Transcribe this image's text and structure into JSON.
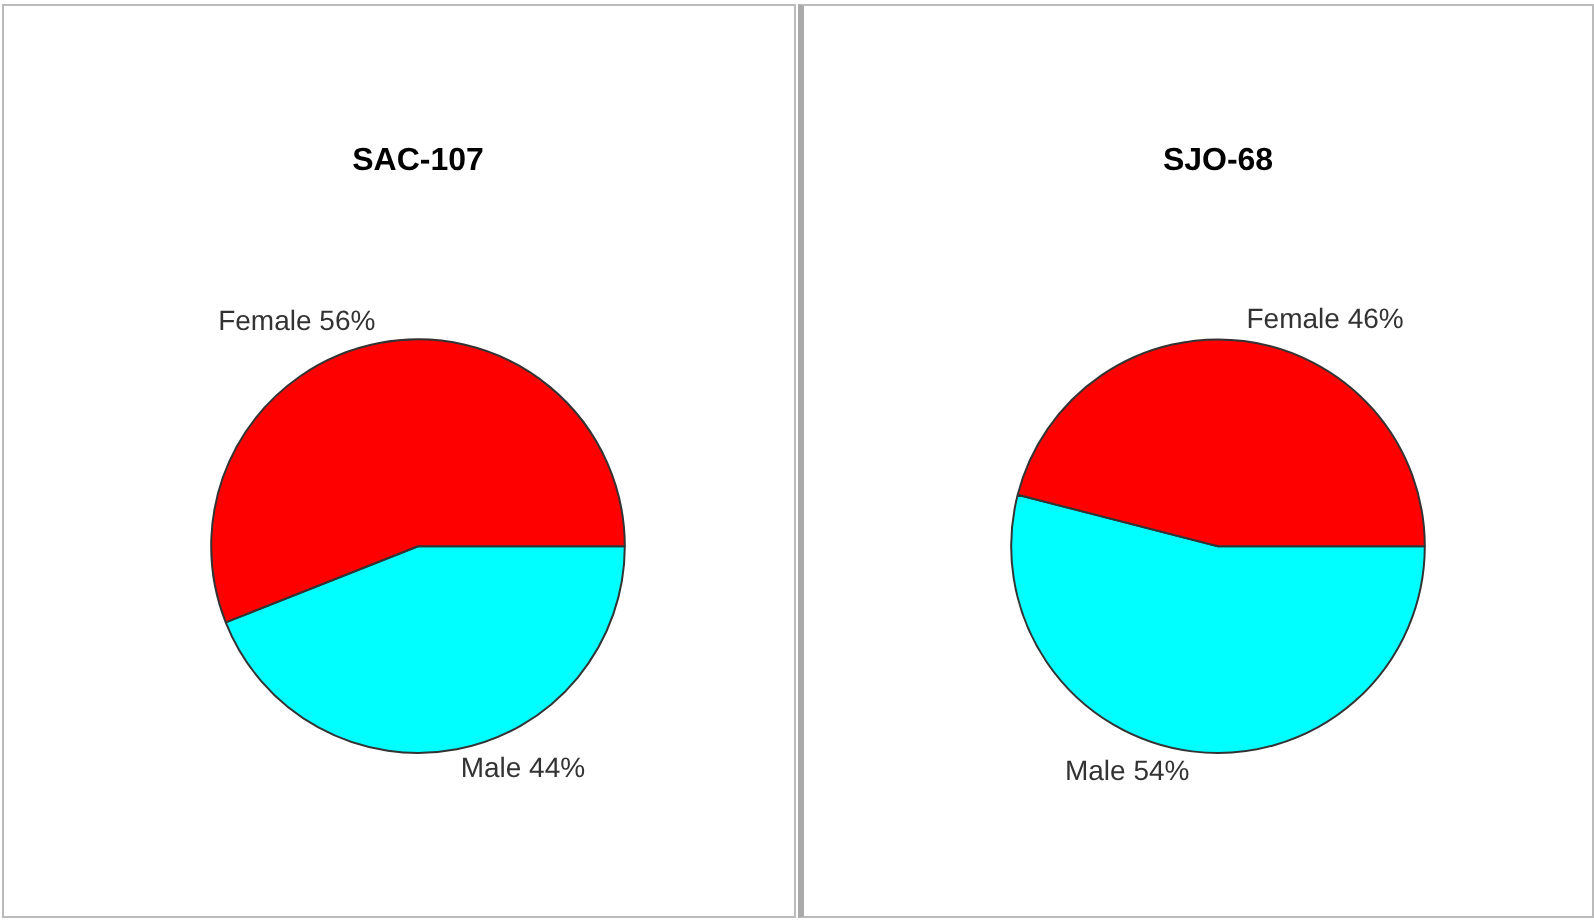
{
  "chart_data": [
    {
      "type": "pie",
      "title": "SAC-107",
      "categories": [
        "Female 56%",
        "Male 44%"
      ],
      "values": [
        56,
        44
      ],
      "colors": [
        "#ff0000",
        "#00ffff"
      ]
    },
    {
      "type": "pie",
      "title": "SJO-68",
      "categories": [
        "Female 46%",
        "Male 54%"
      ],
      "values": [
        46,
        54
      ],
      "colors": [
        "#ff0000",
        "#00ffff"
      ]
    }
  ]
}
